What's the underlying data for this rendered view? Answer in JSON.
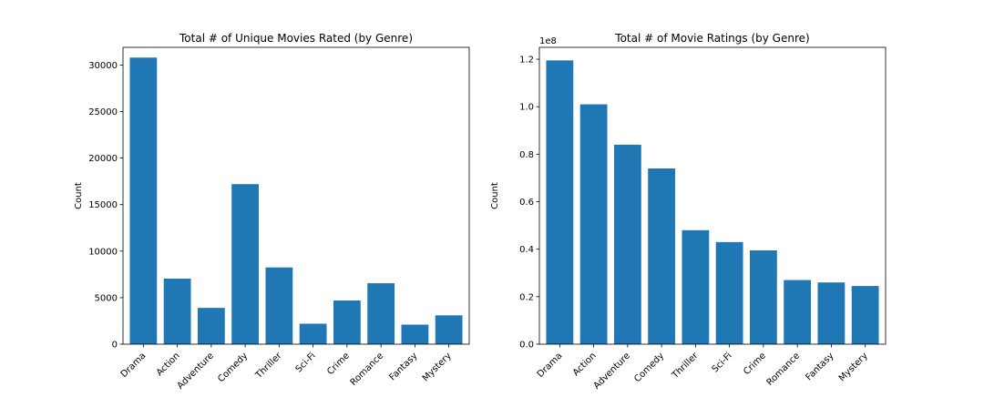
{
  "chart_data": [
    {
      "type": "bar",
      "title": "Total # of Unique Movies Rated (by Genre)",
      "xlabel": "",
      "ylabel": "Count",
      "categories": [
        "Drama",
        "Action",
        "Adventure",
        "Comedy",
        "Thriller",
        "Sci-Fi",
        "Crime",
        "Romance",
        "Fantasy",
        "Mystery"
      ],
      "values": [
        30800,
        7050,
        3900,
        17200,
        8250,
        2200,
        4700,
        6550,
        2100,
        3100
      ],
      "ylim": [
        0,
        31900
      ],
      "yticks": [
        0,
        5000,
        10000,
        15000,
        20000,
        25000,
        30000
      ],
      "ytick_labels": [
        "0",
        "5000",
        "10000",
        "15000",
        "20000",
        "25000",
        "30000"
      ],
      "offset_label": "",
      "color": "#1f77b4",
      "grid": false
    },
    {
      "type": "bar",
      "title": "Total # of Movie Ratings (by Genre)",
      "xlabel": "",
      "ylabel": "Count",
      "categories": [
        "Drama",
        "Action",
        "Adventure",
        "Comedy",
        "Thriller",
        "Sci-Fi",
        "Crime",
        "Romance",
        "Fantasy",
        "Mystery"
      ],
      "values": [
        1.195,
        1.01,
        0.84,
        0.74,
        0.48,
        0.43,
        0.395,
        0.27,
        0.26,
        0.245
      ],
      "ylim": [
        0,
        1.25
      ],
      "yticks": [
        0,
        0.2,
        0.4,
        0.6,
        0.8,
        1.0,
        1.2
      ],
      "ytick_labels": [
        "0.0",
        "0.2",
        "0.4",
        "0.6",
        "0.8",
        "1.0",
        "1.2"
      ],
      "offset_label": "1e8",
      "color": "#1f77b4",
      "grid": false
    }
  ]
}
